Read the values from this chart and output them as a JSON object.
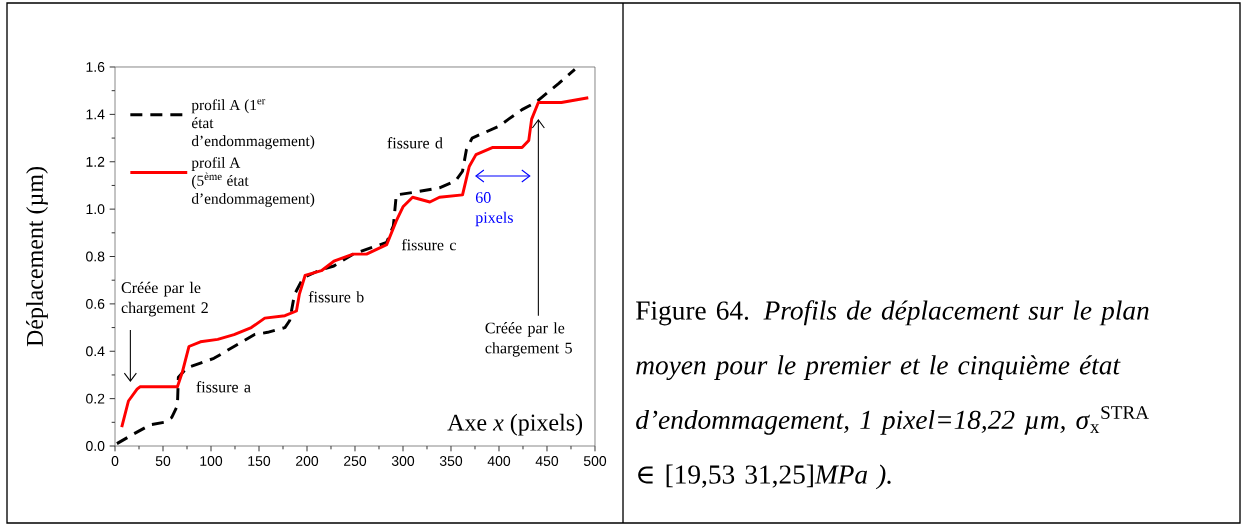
{
  "chart_data": {
    "type": "line",
    "ylabel": "Déplacement (µm)",
    "xlabel": "Axe *x* (pixels)",
    "xlim": [
      0,
      500
    ],
    "xticks": [
      0,
      50,
      100,
      150,
      200,
      250,
      300,
      350,
      400,
      450,
      500
    ],
    "ylim": [
      0,
      1.6
    ],
    "yticks": [
      {
        "value": 0,
        "label": "0.0"
      },
      {
        "value": 0.2,
        "label": "0.2"
      },
      {
        "value": 0.4,
        "label": "0.4"
      },
      {
        "value": 0.6,
        "label": "0.6"
      },
      {
        "value": 0.8,
        "label": "0.8"
      },
      {
        "value": 1.0,
        "label": "1.0"
      },
      {
        "value": 1.2,
        "label": "1.2"
      },
      {
        "value": 1.4,
        "label": "1.4"
      },
      {
        "value": 1.6,
        "label": "1.6"
      }
    ],
    "legend": "top left",
    "grid": false,
    "marker": "none",
    "series": [
      {
        "name": "profil A (1$^{er}$ état d’endommagement)",
        "color": "#000000",
        "line_style": "dashed",
        "x": [
          2,
          19,
          37,
          51,
          59,
          65,
          66,
          75,
          89,
          103,
          124,
          145,
          159,
          177,
          182,
          187,
          196,
          212,
          228,
          248,
          283,
          290,
          293,
          310,
          338,
          355,
          362,
          366,
          372,
          400,
          410,
          424,
          438,
          462,
          479
        ],
        "values": [
          0.01,
          0.05,
          0.09,
          0.1,
          0.12,
          0.17,
          0.29,
          0.33,
          0.35,
          0.37,
          0.42,
          0.47,
          0.48,
          0.5,
          0.53,
          0.64,
          0.71,
          0.74,
          0.76,
          0.81,
          0.86,
          0.93,
          1.06,
          1.07,
          1.09,
          1.12,
          1.16,
          1.25,
          1.3,
          1.35,
          1.38,
          1.42,
          1.45,
          1.53,
          1.59
        ]
      },
      {
        "name": "profil A (5$^{ème}$ état d’endommagement)",
        "color": "#ff0000",
        "line_style": "solid",
        "x": [
          7,
          14,
          23,
          26,
          65,
          70,
          77,
          89,
          107,
          124,
          142,
          156,
          177,
          189,
          192,
          198,
          215,
          228,
          248,
          262,
          283,
          293,
          300,
          310,
          328,
          338,
          362,
          369,
          376,
          393,
          424,
          431,
          434,
          441,
          465,
          493
        ],
        "values": [
          0.08,
          0.19,
          0.24,
          0.25,
          0.25,
          0.31,
          0.42,
          0.44,
          0.45,
          0.47,
          0.5,
          0.54,
          0.55,
          0.57,
          0.64,
          0.72,
          0.74,
          0.78,
          0.81,
          0.81,
          0.85,
          0.95,
          1.01,
          1.05,
          1.03,
          1.05,
          1.06,
          1.18,
          1.23,
          1.26,
          1.26,
          1.29,
          1.38,
          1.45,
          1.45,
          1.47
        ]
      }
    ],
    "annotations": [
      "Créée par le chargement 2",
      "fissure a",
      "fissure b",
      "fissure c",
      "fissure d",
      "60 pixels",
      "Créée par le chargement 5",
      "Figure 64. *Profils de déplacement sur le plan moyen pour le premier et le cinquième état d’endommagement, 1 pixel=18,22 µm,* *σ*$_{x}$$^{STRA}$ ∈ [19,53  31,25]*MPa ).*"
    ]
  }
}
